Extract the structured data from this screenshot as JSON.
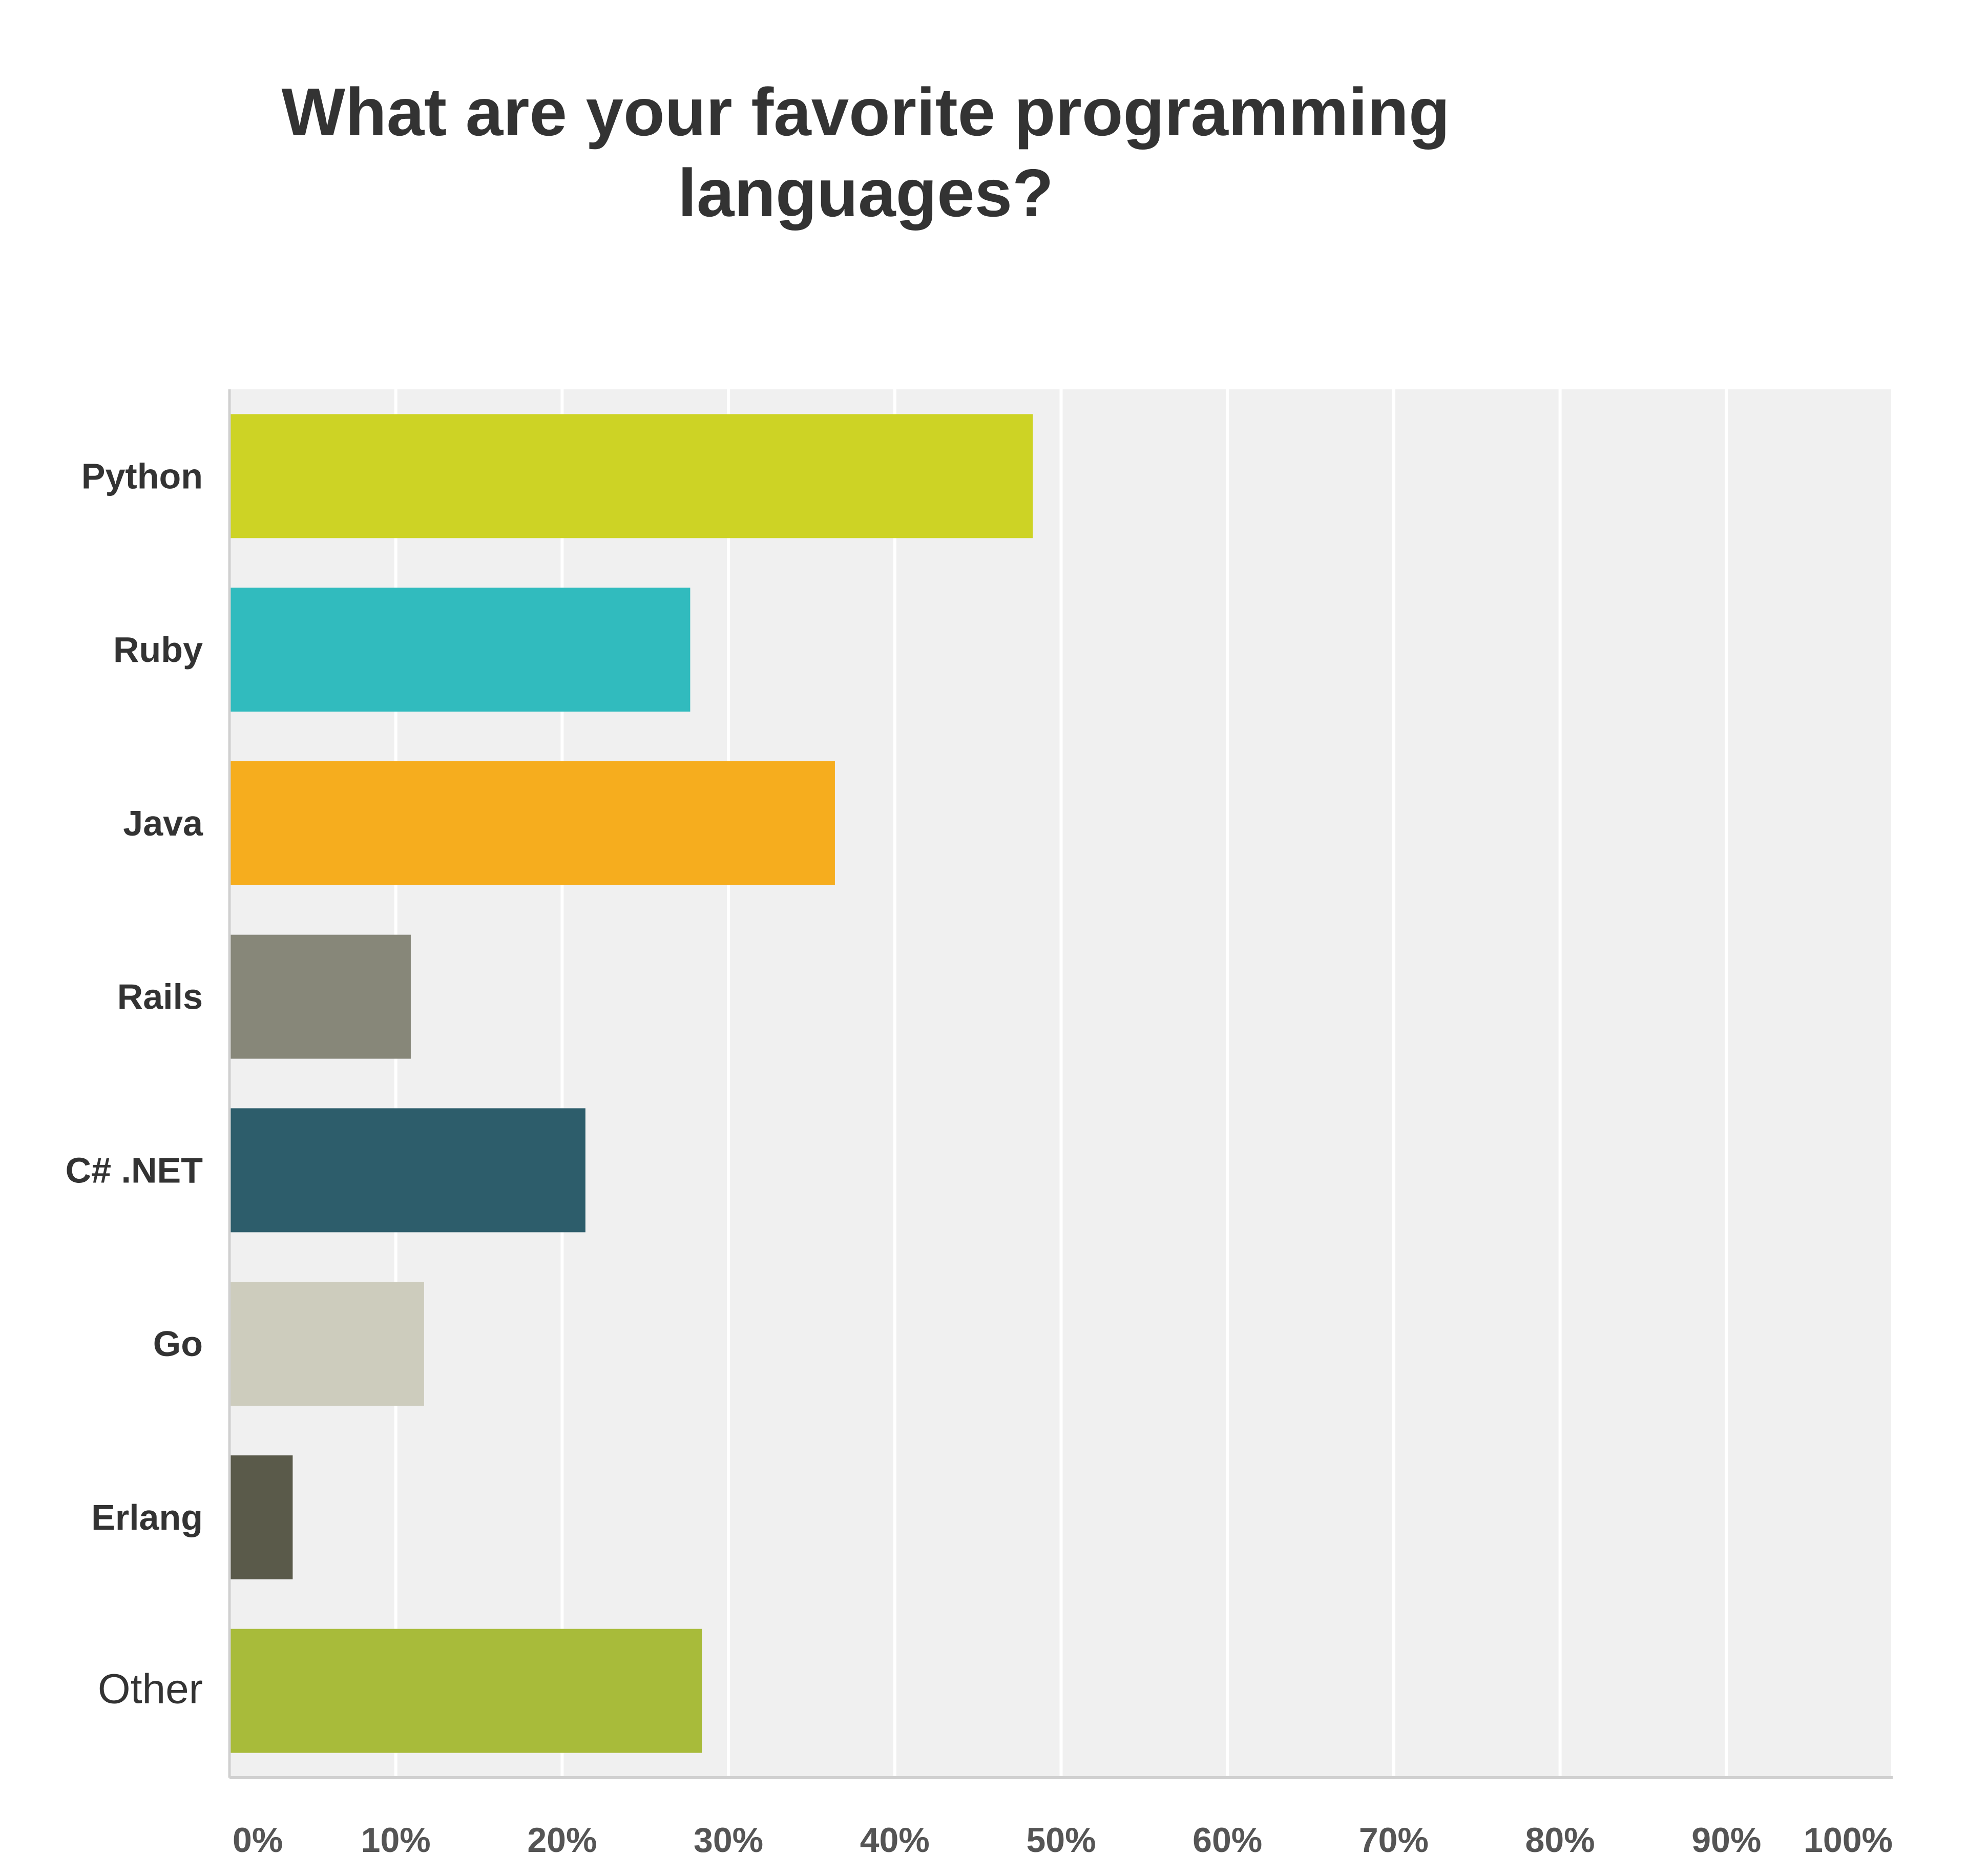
{
  "chart_data": {
    "type": "bar",
    "orientation": "horizontal",
    "title": "What are your favorite programming languages?",
    "categories": [
      "Python",
      "Ruby",
      "Java",
      "Rails",
      "C# .NET",
      "Go",
      "Erlang",
      "Other"
    ],
    "values": [
      48.3,
      27.7,
      36.4,
      10.9,
      21.4,
      11.7,
      3.8,
      28.4
    ],
    "colors": [
      "#cdd325",
      "#31bbbe",
      "#f6ad1e",
      "#878779",
      "#2d5d6b",
      "#cdccbd",
      "#5a5a4a",
      "#a8bb3a"
    ],
    "xlim": [
      0,
      100
    ],
    "xticks": [
      "0%",
      "10%",
      "20%",
      "30%",
      "40%",
      "50%",
      "60%",
      "70%",
      "80%",
      "90%",
      "100%"
    ],
    "plot_background": "#f0f0f0",
    "grid": true
  }
}
